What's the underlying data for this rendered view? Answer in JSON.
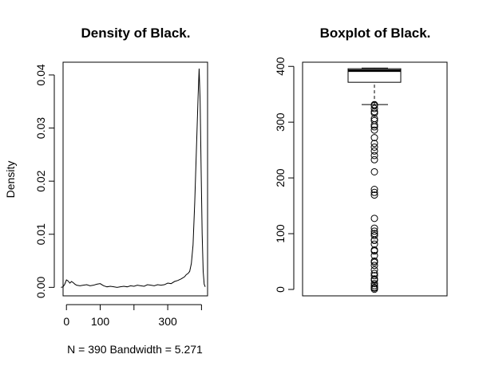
{
  "chart_data": [
    {
      "type": "line",
      "title": "Density of Black.",
      "xlabel": "N = 390   Bandwidth = 5.271",
      "ylabel": "Density",
      "xlim": [
        -10,
        418
      ],
      "ylim": [
        -0.0016,
        0.0424
      ],
      "xticks": [
        0,
        100,
        200,
        300,
        400
      ],
      "xtick_labels": [
        "0",
        "100",
        "",
        "300",
        ""
      ],
      "yticks": [
        0.0,
        0.01,
        0.02,
        0.03,
        0.04
      ],
      "ytick_labels": [
        "0.00",
        "0.01",
        "0.02",
        "0.03",
        "0.04"
      ],
      "grid": false,
      "x": [
        -16,
        -10,
        -5,
        0,
        5,
        10,
        15,
        20,
        25,
        30,
        40,
        50,
        60,
        70,
        80,
        90,
        100,
        110,
        120,
        130,
        140,
        150,
        160,
        170,
        180,
        190,
        200,
        210,
        220,
        230,
        240,
        250,
        260,
        270,
        280,
        290,
        300,
        310,
        320,
        330,
        340,
        350,
        355,
        360,
        365,
        370,
        375,
        380,
        385,
        390,
        393,
        396,
        399,
        402,
        405,
        408,
        411
      ],
      "y": [
        0.0,
        0.0001,
        0.0006,
        0.0014,
        0.0012,
        0.0008,
        0.0011,
        0.0009,
        0.0006,
        0.0004,
        0.0003,
        0.0004,
        0.0005,
        0.0003,
        0.0004,
        0.0006,
        0.0007,
        0.0003,
        0.0001,
        0.0002,
        0.0001,
        0.0,
        0.0001,
        0.0002,
        0.0001,
        0.0003,
        0.0002,
        0.0004,
        0.0003,
        0.0002,
        0.0005,
        0.0004,
        0.0003,
        0.0005,
        0.0004,
        0.0005,
        0.0008,
        0.0007,
        0.0011,
        0.0013,
        0.0016,
        0.002,
        0.0024,
        0.0026,
        0.003,
        0.0045,
        0.008,
        0.016,
        0.026,
        0.036,
        0.0412,
        0.035,
        0.022,
        0.01,
        0.003,
        0.0006,
        0.0001
      ]
    },
    {
      "type": "box",
      "title": "Boxplot of Black.",
      "ylim": [
        -11.5,
        407.5
      ],
      "yticks": [
        0,
        100,
        200,
        300,
        400
      ],
      "ytick_labels": [
        "0",
        "100",
        "200",
        "300",
        "400"
      ],
      "grid": false,
      "stats": {
        "whisker_low": 331.6,
        "q1": 371.5,
        "median": 392.3,
        "q3": 395.8,
        "whisker_high": 396.9
      },
      "outliers": [
        0.32,
        2.5,
        3.5,
        6.7,
        10.5,
        16.5,
        18.8,
        24.7,
        28.8,
        35.2,
        43.1,
        48.5,
        50.9,
        60.7,
        68.9,
        70.8,
        81.3,
        88.0,
        88.6,
        96.7,
        100.2,
        104.5,
        109.9,
        127.4,
        169.3,
        174.0,
        179.4,
        210.9,
        232.6,
        240.2,
        248.3,
        255.2,
        261.9,
        272.2,
        285.8,
        291.6,
        295.0,
        302.8,
        306.4,
        316.0,
        318.8,
        324.5,
        330.0,
        331.3
      ]
    }
  ]
}
